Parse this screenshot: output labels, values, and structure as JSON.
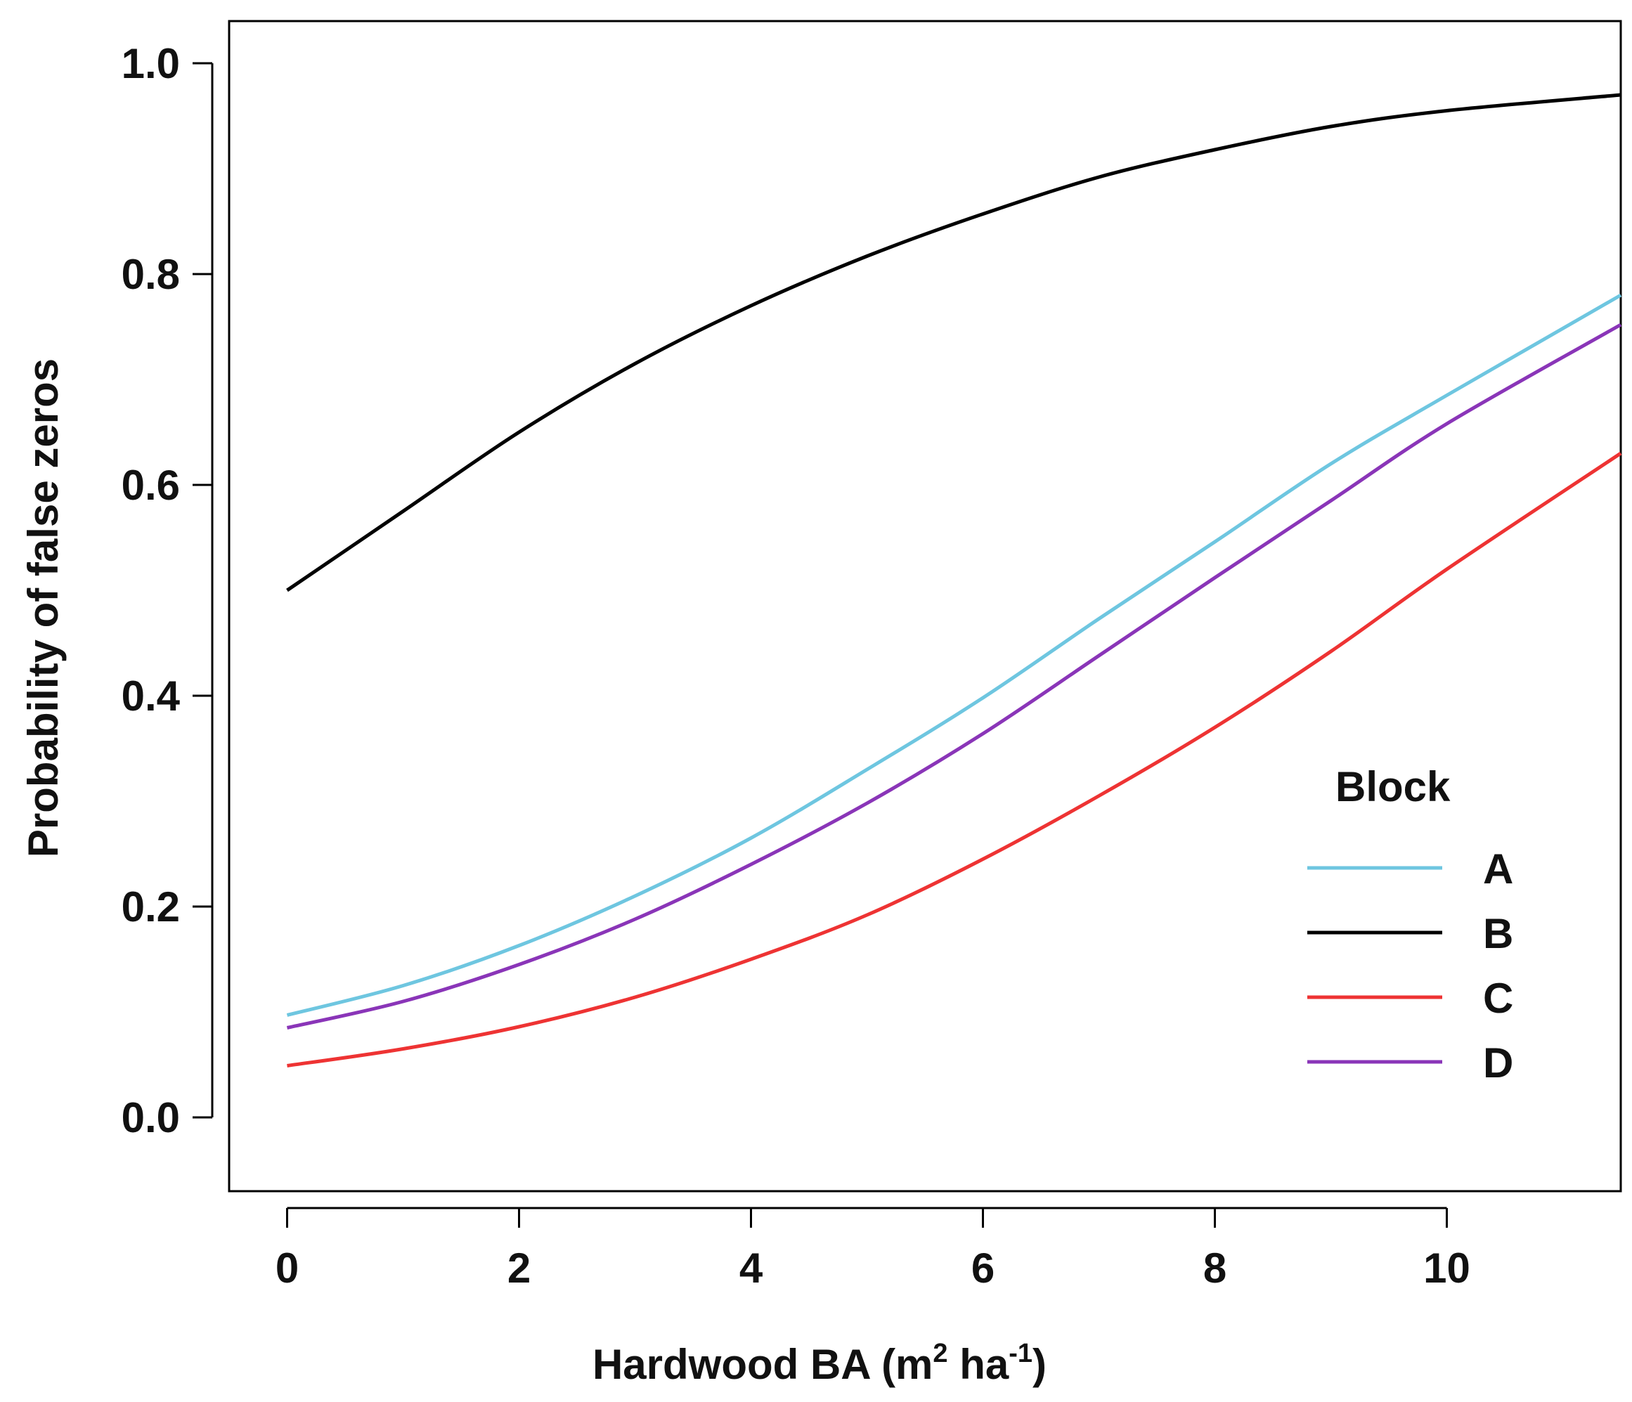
{
  "chart_data": {
    "type": "line",
    "title": "",
    "xlabel": "Hardwood BA (m",
    "xlabel_sup1": "2",
    "xlabel_mid": " ha",
    "xlabel_sup2": "-1",
    "xlabel_end": ")",
    "ylabel": "Probability of false zeros",
    "xlim": [
      -0.5,
      11.5
    ],
    "ylim": [
      -0.07,
      1.04
    ],
    "x_ticks": [
      0,
      2,
      4,
      6,
      8,
      10
    ],
    "x_tick_labels": [
      "0",
      "2",
      "4",
      "6",
      "8",
      "10"
    ],
    "y_ticks": [
      0.0,
      0.2,
      0.4,
      0.6,
      0.8,
      1.0
    ],
    "y_tick_labels": [
      "0.0",
      "0.2",
      "0.4",
      "0.6",
      "0.8",
      "1.0"
    ],
    "grid": false,
    "legend": {
      "title": "Block",
      "placement": "bottom-right"
    },
    "x": [
      0,
      1,
      2,
      3,
      4,
      5,
      6,
      7,
      8,
      9,
      10,
      11.5
    ],
    "series": [
      {
        "name": "A",
        "color": "#6ec6e0",
        "values": [
          0.097,
          0.125,
          0.163,
          0.21,
          0.265,
          0.33,
          0.398,
          0.473,
          0.546,
          0.62,
          0.685,
          0.78
        ]
      },
      {
        "name": "B",
        "color": "#000000",
        "values": [
          0.5,
          0.575,
          0.65,
          0.715,
          0.77,
          0.817,
          0.857,
          0.892,
          0.918,
          0.94,
          0.955,
          0.97
        ]
      },
      {
        "name": "C",
        "color": "#ee3333",
        "values": [
          0.049,
          0.065,
          0.086,
          0.114,
          0.15,
          0.192,
          0.245,
          0.305,
          0.37,
          0.442,
          0.52,
          0.63
        ]
      },
      {
        "name": "D",
        "color": "#8a35b8",
        "values": [
          0.085,
          0.11,
          0.145,
          0.188,
          0.24,
          0.298,
          0.364,
          0.438,
          0.512,
          0.585,
          0.658,
          0.752
        ]
      }
    ]
  }
}
